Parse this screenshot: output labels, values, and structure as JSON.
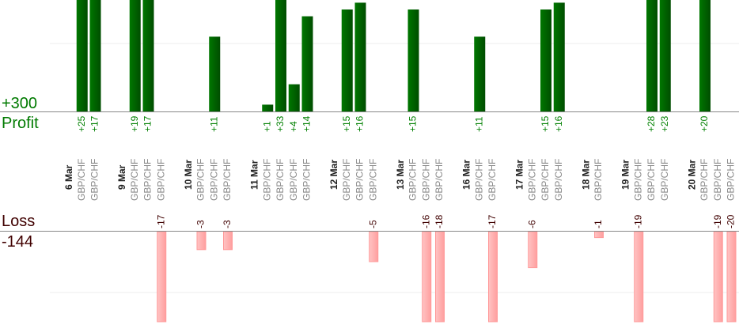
{
  "chart_data": {
    "type": "bar",
    "axis_labels": {
      "profit_max": "+300",
      "profit_title": "Profit",
      "loss_title": "Loss",
      "loss_max": "-144"
    },
    "colors": {
      "profit": "#006600",
      "loss": "#ffaaaa",
      "profit_text": "#008000",
      "loss_text": "#400000",
      "pair_text": "#888888"
    },
    "grid": true,
    "days": [
      {
        "date": "6 Mar",
        "trades": [
          {
            "pair": "GBP/CHF",
            "value": 25,
            "label": "+25"
          },
          {
            "pair": "GBP/CHF",
            "value": 17,
            "label": "+17"
          }
        ]
      },
      {
        "date": "9 Mar",
        "trades": [
          {
            "pair": "GBP/CHF",
            "value": 19,
            "label": "+19"
          },
          {
            "pair": "GBP/CHF",
            "value": 17,
            "label": "+17"
          },
          {
            "pair": "GBP/CHF",
            "value": -17,
            "label": "-17"
          }
        ]
      },
      {
        "date": "10 Mar",
        "trades": [
          {
            "pair": "GBP/CHF",
            "value": -3,
            "label": "-3"
          },
          {
            "pair": "GBP/CHF",
            "value": 11,
            "label": "+11"
          },
          {
            "pair": "GBP/CHF",
            "value": -3,
            "label": "-3"
          }
        ]
      },
      {
        "date": "11 Mar",
        "trades": [
          {
            "pair": "GBP/CHF",
            "value": 1,
            "label": "+1"
          },
          {
            "pair": "GBP/CHF",
            "value": 33,
            "label": "+33"
          },
          {
            "pair": "GBP/CHF",
            "value": 4,
            "label": "+4"
          },
          {
            "pair": "GBP/CHF",
            "value": 14,
            "label": "+14"
          }
        ]
      },
      {
        "date": "12 Mar",
        "trades": [
          {
            "pair": "GBP/CHF",
            "value": 15,
            "label": "+15"
          },
          {
            "pair": "GBP/CHF",
            "value": 16,
            "label": "+16"
          },
          {
            "pair": "GBP/CHF",
            "value": -5,
            "label": "-5"
          }
        ]
      },
      {
        "date": "13 Mar",
        "trades": [
          {
            "pair": "GBP/CHF",
            "value": 15,
            "label": "+15"
          },
          {
            "pair": "GBP/CHF",
            "value": -16,
            "label": "-16"
          },
          {
            "pair": "GBP/CHF",
            "value": -18,
            "label": "-18"
          }
        ]
      },
      {
        "date": "16 Mar",
        "trades": [
          {
            "pair": "GBP/CHF",
            "value": 11,
            "label": "+11"
          },
          {
            "pair": "GBP/CHF",
            "value": -17,
            "label": "-17"
          }
        ]
      },
      {
        "date": "17 Mar",
        "trades": [
          {
            "pair": "GBP/CHF",
            "value": -6,
            "label": "-6"
          },
          {
            "pair": "GBP/CHF",
            "value": 15,
            "label": "+15"
          },
          {
            "pair": "GBP/CHF",
            "value": 16,
            "label": "+16"
          }
        ]
      },
      {
        "date": "18 Mar",
        "trades": [
          {
            "pair": "GBP/CHF",
            "value": -1,
            "label": "-1"
          }
        ]
      },
      {
        "date": "19 Mar",
        "trades": [
          {
            "pair": "GBP/CHF",
            "value": -19,
            "label": "-19"
          },
          {
            "pair": "GBP/CHF",
            "value": 28,
            "label": "+28"
          },
          {
            "pair": "GBP/CHF",
            "value": 23,
            "label": "+23"
          }
        ]
      },
      {
        "date": "20 Mar",
        "trades": [
          {
            "pair": "GBP/CHF",
            "value": 20,
            "label": "+20"
          },
          {
            "pair": "GBP/CHF",
            "value": -19,
            "label": "-19"
          },
          {
            "pair": "GBP/CHF",
            "value": -20,
            "label": "-20"
          }
        ]
      }
    ]
  }
}
